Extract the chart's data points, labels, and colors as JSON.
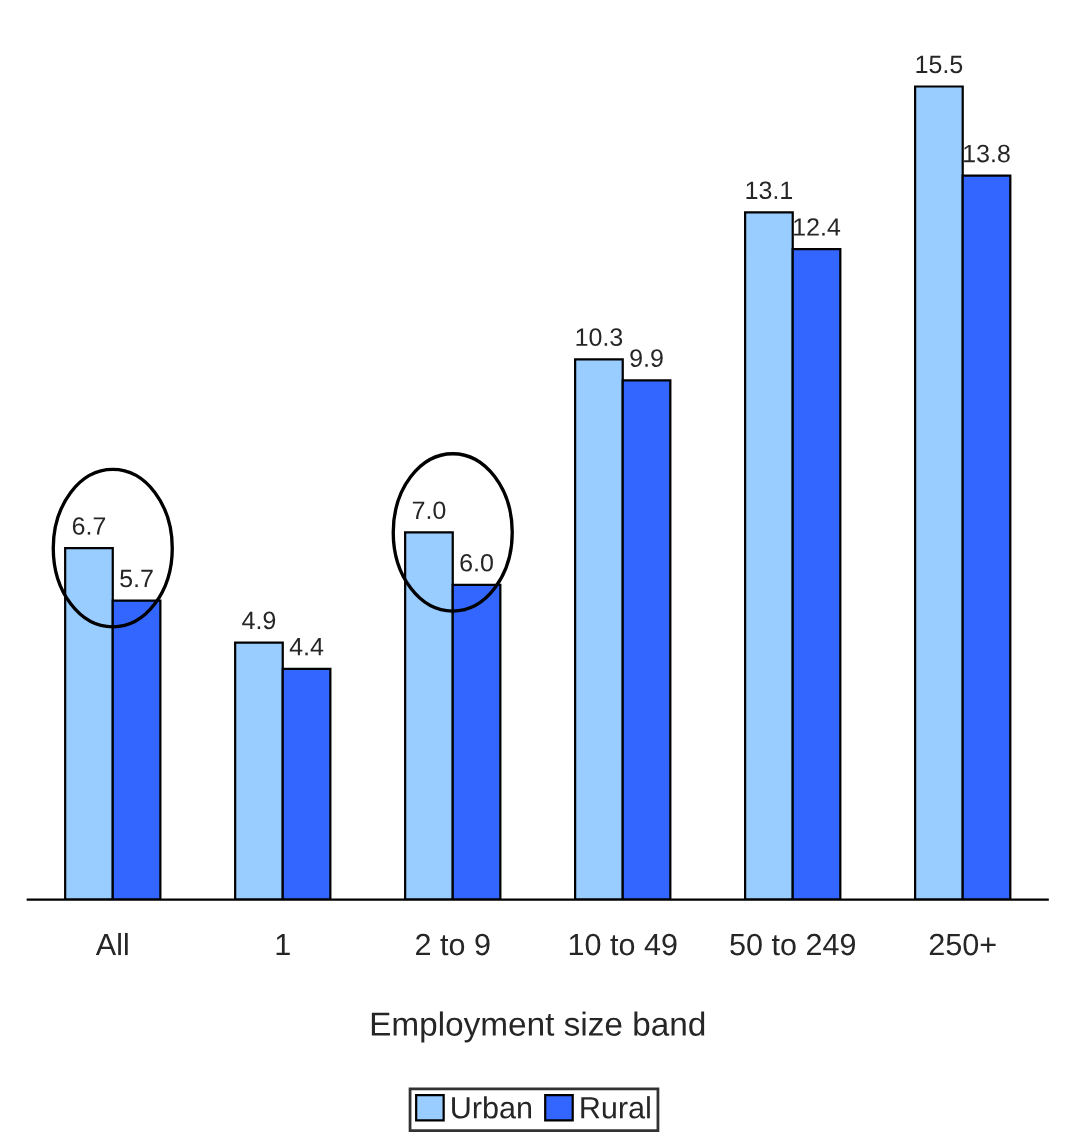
{
  "chart_data": {
    "type": "bar",
    "xlabel": "Employment size band",
    "categories": [
      "All",
      "1",
      "2 to 9",
      "10 to 49",
      "50 to 249",
      "250+"
    ],
    "series": [
      {
        "name": "Urban",
        "color": "#99ccff",
        "values": [
          6.7,
          4.9,
          7.0,
          10.3,
          13.1,
          15.5
        ],
        "value_labels": [
          "6.7",
          "4.9",
          "7.0",
          "10.3",
          "13.1",
          "15.5"
        ]
      },
      {
        "name": "Rural",
        "color": "#3366ff",
        "values": [
          5.7,
          4.4,
          6.0,
          9.9,
          12.4,
          13.8
        ],
        "value_labels": [
          "5.7",
          "4.4",
          "6.0",
          "9.9",
          "12.4",
          "13.8"
        ]
      }
    ],
    "tick_labels": "x",
    "grid": false,
    "legend": "bottom"
  }
}
